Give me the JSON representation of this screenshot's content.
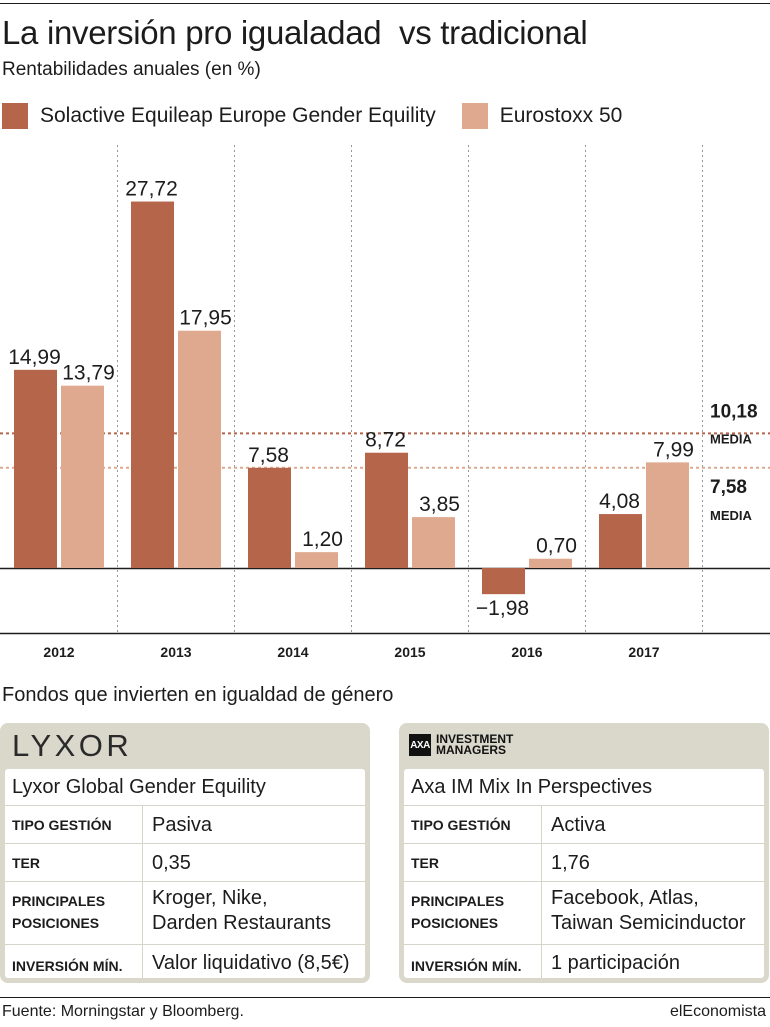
{
  "title": "La inversión pro igualadad  vs tradicional",
  "subtitle": "Rentabilidades anuales (en %)",
  "colors": {
    "series1": "#b5654a",
    "series2": "#dfa98f",
    "text": "#1c1c1c",
    "grid": "#999999",
    "card_bg": "#d9d8cb"
  },
  "chart_data": {
    "type": "bar",
    "title": "La inversión pro igualadad  vs tradicional",
    "subtitle": "Rentabilidades anuales (en %)",
    "categories": [
      "2012",
      "2013",
      "2014",
      "2015",
      "2016",
      "2017"
    ],
    "series": [
      {
        "name": "Solactive Equileap Europe Gender Equility",
        "values": [
          14.99,
          27.72,
          7.58,
          8.72,
          -1.98,
          4.08
        ],
        "labels": [
          "14,99",
          "27,72",
          "7,58",
          "8,72",
          "−1,98",
          "4,08"
        ]
      },
      {
        "name": "Eurostoxx 50",
        "values": [
          13.79,
          17.95,
          1.2,
          3.85,
          0.7,
          7.99
        ],
        "labels": [
          "13,79",
          "17,95",
          "1,20",
          "3,85",
          "0,70",
          "7,99"
        ]
      }
    ],
    "reference_lines": [
      {
        "value": 10.18,
        "label": "10,18",
        "sublabel": "MEDIA",
        "series": "Solactive Equileap Europe Gender Equility"
      },
      {
        "value": 7.58,
        "label": "7,58",
        "sublabel": "MEDIA",
        "series": "Eurostoxx 50"
      }
    ],
    "ylim": [
      -4,
      30
    ],
    "xlabel": "",
    "ylabel": "",
    "grid": "vertical dotted separators between years",
    "legend_position": "top"
  },
  "section_title": "Fondos que invierten en igualdad de género",
  "funds": [
    {
      "logo_text": "LYXOR",
      "name": "Lyxor Global Gender Equility",
      "rows": [
        {
          "key_lines": [
            "TIPO GESTIÓN"
          ],
          "value_lines": [
            "Pasiva"
          ]
        },
        {
          "key_lines": [
            "TER"
          ],
          "value_lines": [
            "0,35"
          ]
        },
        {
          "key_lines": [
            "PRINCIPALES",
            "POSICIONES"
          ],
          "value_lines": [
            "Kroger, Nike,",
            "Darden Restaurants"
          ]
        },
        {
          "key_lines": [
            "INVERSIÓN MÍN."
          ],
          "value_lines": [
            "Valor liquidativo (8,5€)"
          ]
        }
      ]
    },
    {
      "logo_text": "AXA",
      "logo_lines": [
        "INVESTMENT",
        "MANAGERS"
      ],
      "name": "Axa IM Mix In Perspectives",
      "rows": [
        {
          "key_lines": [
            "TIPO GESTIÓN"
          ],
          "value_lines": [
            "Activa"
          ]
        },
        {
          "key_lines": [
            "TER"
          ],
          "value_lines": [
            "1,76"
          ]
        },
        {
          "key_lines": [
            "PRINCIPALES",
            "POSICIONES"
          ],
          "value_lines": [
            "Facebook, Atlas,",
            "Taiwan Semicinductor"
          ]
        },
        {
          "key_lines": [
            "INVERSIÓN MÍN."
          ],
          "value_lines": [
            "1 participación"
          ]
        }
      ]
    }
  ],
  "source": "Fuente: Morningstar y Bloomberg.",
  "brand": "elEconomista"
}
